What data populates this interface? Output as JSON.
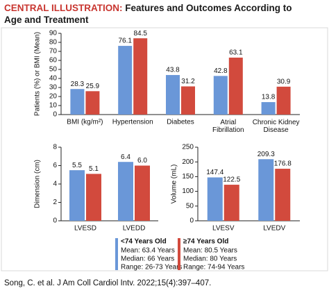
{
  "header": {
    "label": "CENTRAL ILLUSTRATION:",
    "title": "Features and Outcomes According to Age and Treatment"
  },
  "chart_data": [
    {
      "type": "bar",
      "y_label": "Patients (%) or BMI (Mean)",
      "categories": [
        "BMI (kg/m²)",
        "Hypertension",
        "Diabetes",
        "Atrial Fibrillation",
        "Chronic Kidney Disease"
      ],
      "series": [
        {
          "name": "<74 Years Old",
          "color": "#6a97d8",
          "values": [
            28.3,
            76.1,
            43.8,
            42.8,
            13.8
          ]
        },
        {
          "name": "≥74 Years Old",
          "color": "#d24a3d",
          "values": [
            25.9,
            84.5,
            31.2,
            63.1,
            30.9
          ]
        }
      ],
      "ylim": [
        0,
        90
      ],
      "yticks": [
        0,
        10,
        20,
        30,
        40,
        50,
        60,
        70,
        80,
        90
      ],
      "grid": false
    },
    {
      "type": "bar",
      "y_label": "Dimension (cm)",
      "categories": [
        "LVESD",
        "LVEDD"
      ],
      "series": [
        {
          "color": "#6a97d8",
          "values": [
            5.5,
            6.4
          ]
        },
        {
          "color": "#d24a3d",
          "values": [
            5.1,
            6.0
          ],
          "value_labels": [
            "5.1",
            "6.0"
          ]
        }
      ],
      "ylim": [
        0,
        8
      ],
      "yticks": [
        0,
        2,
        4,
        6,
        8
      ],
      "grid": false
    },
    {
      "type": "bar",
      "y_label": "Volume (mL)",
      "categories": [
        "LVESV",
        "LVEDV"
      ],
      "series": [
        {
          "color": "#6a97d8",
          "values": [
            147.4,
            209.3
          ]
        },
        {
          "color": "#d24a3d",
          "values": [
            122.5,
            176.8
          ]
        }
      ],
      "ylim": [
        0,
        250
      ],
      "yticks": [
        0,
        50,
        100,
        150,
        200,
        250
      ],
      "grid": false
    }
  ],
  "legend": {
    "details": [
      [
        "Mean: 63.4 Years",
        "Median: 66 Years",
        "Range: 26-73 Years"
      ],
      [
        "Mean: 80.5 Years",
        "Median: 80 Years",
        "Range: 74-94 Years"
      ]
    ]
  },
  "citation": "Song, C. et al. J Am Coll Cardiol Intv. 2022;15(4):397–407."
}
